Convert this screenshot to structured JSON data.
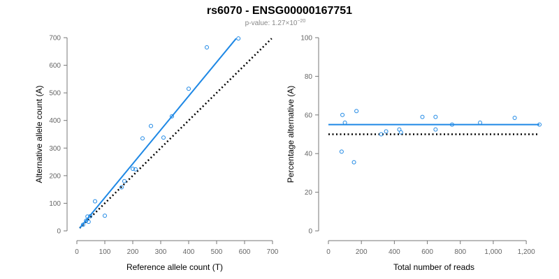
{
  "title": "rs6070 - ENSG00000167751",
  "subtitle_prefix": "p-value: 1.27×10",
  "subtitle_exponent": "−20",
  "colors": {
    "fit": "#1e88e5",
    "points": "#1e88e5",
    "reference": "#000000",
    "axis": "#777777",
    "tick_text": "#666666"
  },
  "chart_data": [
    {
      "type": "scatter",
      "name": "left",
      "xlabel": "Reference allele count (T)",
      "ylabel": "Alternative allele count (A)",
      "xlim": [
        0,
        700
      ],
      "ylim": [
        0,
        700
      ],
      "xticks": [
        0,
        100,
        200,
        300,
        400,
        500,
        600,
        700
      ],
      "yticks": [
        0,
        100,
        200,
        300,
        400,
        500,
        600,
        700
      ],
      "xtick_labels": [
        "0",
        "100",
        "200",
        "300",
        "400",
        "500",
        "600",
        "700"
      ],
      "ytick_labels": [
        "0",
        "100",
        "200",
        "300",
        "400",
        "500",
        "600",
        "700"
      ],
      "points": [
        {
          "x": 22,
          "y": 22
        },
        {
          "x": 33,
          "y": 37
        },
        {
          "x": 38,
          "y": 52
        },
        {
          "x": 42,
          "y": 33
        },
        {
          "x": 48,
          "y": 53
        },
        {
          "x": 65,
          "y": 107
        },
        {
          "x": 100,
          "y": 55
        },
        {
          "x": 160,
          "y": 158
        },
        {
          "x": 170,
          "y": 180
        },
        {
          "x": 200,
          "y": 225
        },
        {
          "x": 210,
          "y": 223
        },
        {
          "x": 235,
          "y": 335
        },
        {
          "x": 265,
          "y": 380
        },
        {
          "x": 310,
          "y": 338
        },
        {
          "x": 340,
          "y": 415
        },
        {
          "x": 400,
          "y": 515
        },
        {
          "x": 465,
          "y": 665
        },
        {
          "x": 578,
          "y": 697
        }
      ],
      "fit_line": [
        [
          10,
          10
        ],
        [
          570,
          697
        ]
      ],
      "reference_line": [
        [
          10,
          10
        ],
        [
          697,
          697
        ]
      ]
    },
    {
      "type": "scatter",
      "name": "right",
      "xlabel": "Total number of reads",
      "ylabel": "Percentage alternative (A)",
      "xlim": [
        0,
        1280
      ],
      "ylim": [
        0,
        100
      ],
      "xticks": [
        0,
        200,
        400,
        600,
        800,
        1000,
        1200
      ],
      "yticks": [
        0,
        20,
        40,
        60,
        80,
        100
      ],
      "xtick_labels": [
        "0",
        "200",
        "400",
        "600",
        "800",
        "1,000",
        "1,200"
      ],
      "ytick_labels": [
        "0",
        "20",
        "40",
        "60",
        "80",
        "100"
      ],
      "points": [
        {
          "x": 80,
          "y": 41
        },
        {
          "x": 85,
          "y": 60
        },
        {
          "x": 100,
          "y": 56
        },
        {
          "x": 155,
          "y": 35.5
        },
        {
          "x": 170,
          "y": 62
        },
        {
          "x": 320,
          "y": 50
        },
        {
          "x": 350,
          "y": 51.5
        },
        {
          "x": 430,
          "y": 52.5
        },
        {
          "x": 440,
          "y": 51
        },
        {
          "x": 570,
          "y": 59
        },
        {
          "x": 650,
          "y": 59
        },
        {
          "x": 650,
          "y": 52.5
        },
        {
          "x": 750,
          "y": 55
        },
        {
          "x": 920,
          "y": 56
        },
        {
          "x": 1130,
          "y": 58.5
        },
        {
          "x": 1280,
          "y": 55
        }
      ],
      "fit_line": [
        [
          0,
          55
        ],
        [
          1280,
          55
        ]
      ],
      "reference_line": [
        [
          0,
          50
        ],
        [
          1280,
          50
        ]
      ]
    }
  ]
}
